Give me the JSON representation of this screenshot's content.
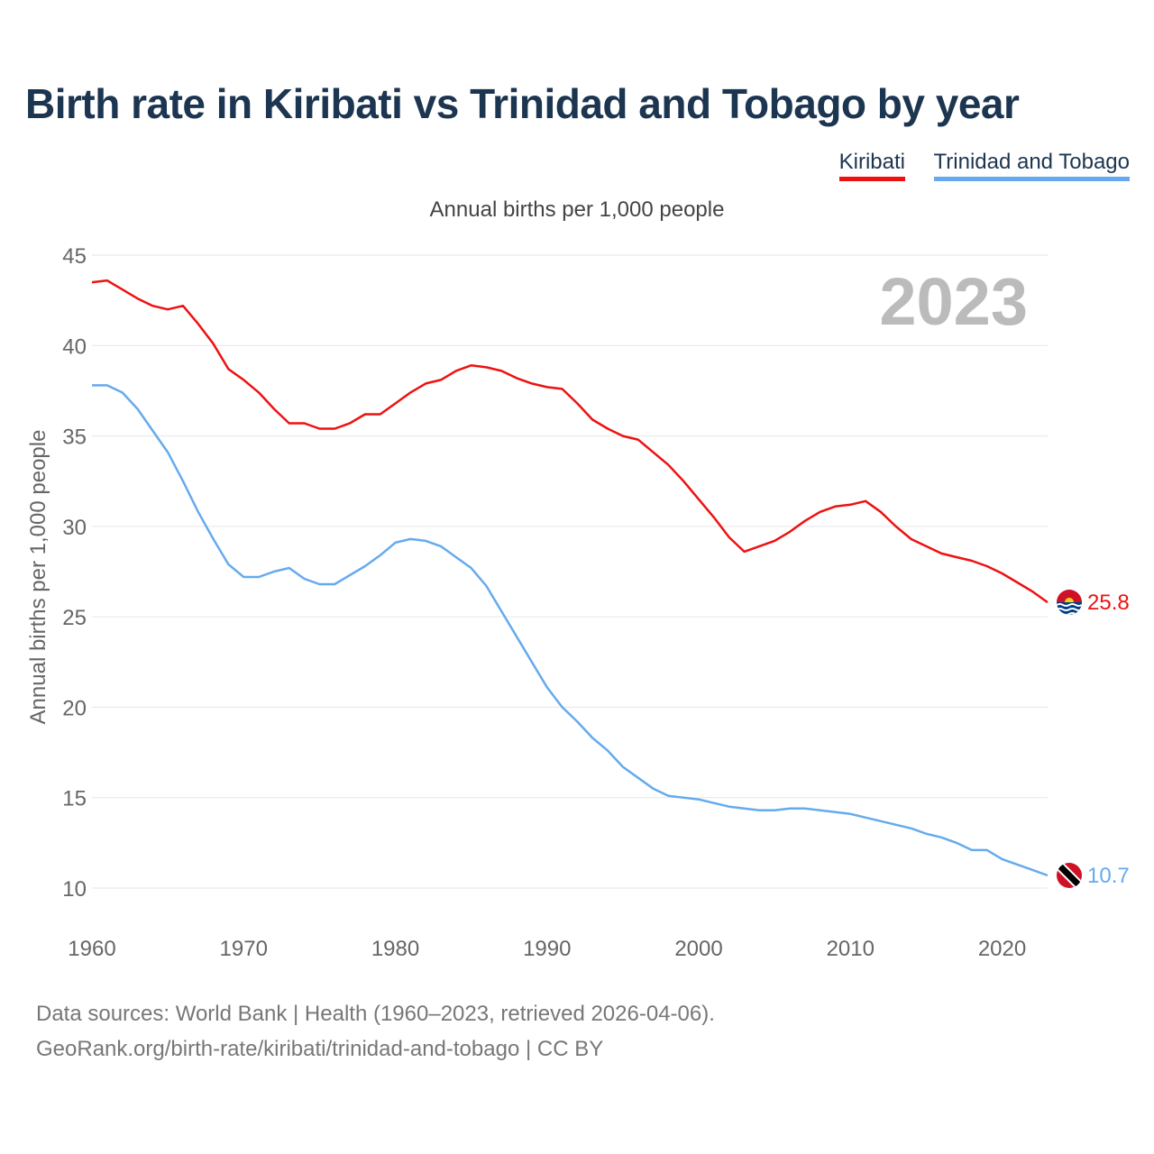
{
  "title": "Birth rate in Kiribati vs Trinidad and Tobago by year",
  "legend": [
    {
      "label": "Kiribati",
      "color": "#ee1111"
    },
    {
      "label": "Trinidad and Tobago",
      "color": "#66aaee"
    }
  ],
  "chart_data": {
    "type": "line",
    "title": "Birth rate in Kiribati vs Trinidad and Tobago by year",
    "subtitle": "Annual births per 1,000 people",
    "ylabel": "Annual births per 1,000 people",
    "xlabel": "",
    "ylim": [
      10,
      45
    ],
    "xlim": [
      1960,
      2023
    ],
    "yticks": [
      "10",
      "15",
      "20",
      "25",
      "30",
      "35",
      "40",
      "45"
    ],
    "xticks": [
      "1960",
      "1970",
      "1980",
      "1990",
      "2000",
      "2010",
      "2020"
    ],
    "grid": true,
    "year_label": "2023",
    "x": [
      1960,
      1961,
      1962,
      1963,
      1964,
      1965,
      1966,
      1967,
      1968,
      1969,
      1970,
      1971,
      1972,
      1973,
      1974,
      1975,
      1976,
      1977,
      1978,
      1979,
      1980,
      1981,
      1982,
      1983,
      1984,
      1985,
      1986,
      1987,
      1988,
      1989,
      1990,
      1991,
      1992,
      1993,
      1994,
      1995,
      1996,
      1997,
      1998,
      1999,
      2000,
      2001,
      2002,
      2003,
      2004,
      2005,
      2006,
      2007,
      2008,
      2009,
      2010,
      2011,
      2012,
      2013,
      2014,
      2015,
      2016,
      2017,
      2018,
      2019,
      2020,
      2021,
      2022,
      2023
    ],
    "series": [
      {
        "name": "Kiribati",
        "color": "#ee1111",
        "end_label": "25.8",
        "values": [
          43.5,
          43.6,
          43.1,
          42.6,
          42.2,
          42.0,
          42.2,
          41.2,
          40.1,
          38.7,
          38.1,
          37.4,
          36.5,
          35.7,
          35.7,
          35.4,
          35.4,
          35.7,
          36.2,
          36.2,
          36.8,
          37.4,
          37.9,
          38.1,
          38.6,
          38.9,
          38.8,
          38.6,
          38.2,
          37.9,
          37.7,
          37.6,
          36.8,
          35.9,
          35.4,
          35.0,
          34.8,
          34.1,
          33.4,
          32.5,
          31.5,
          30.5,
          29.4,
          28.6,
          28.9,
          29.2,
          29.7,
          30.3,
          30.8,
          31.1,
          31.2,
          31.4,
          30.8,
          30.0,
          29.3,
          28.9,
          28.5,
          28.3,
          28.1,
          27.8,
          27.4,
          26.9,
          26.4,
          25.8
        ]
      },
      {
        "name": "Trinidad and Tobago",
        "color": "#66aaee",
        "end_label": "10.7",
        "values": [
          37.8,
          37.8,
          37.4,
          36.5,
          35.3,
          34.1,
          32.5,
          30.8,
          29.3,
          27.9,
          27.2,
          27.2,
          27.5,
          27.7,
          27.1,
          26.8,
          26.8,
          27.3,
          27.8,
          28.4,
          29.1,
          29.3,
          29.2,
          28.9,
          28.3,
          27.7,
          26.7,
          25.3,
          23.9,
          22.5,
          21.1,
          20.0,
          19.2,
          18.3,
          17.6,
          16.7,
          16.1,
          15.5,
          15.1,
          15.0,
          14.9,
          14.7,
          14.5,
          14.4,
          14.3,
          14.3,
          14.4,
          14.4,
          14.3,
          14.2,
          14.1,
          13.9,
          13.7,
          13.5,
          13.3,
          13.0,
          12.8,
          12.5,
          12.1,
          12.1,
          11.6,
          11.3,
          11.0,
          10.7
        ]
      }
    ]
  },
  "footer": {
    "line1": "Data sources: World Bank | Health (1960–2023, retrieved 2026-04-06).",
    "line2": "GeoRank.org/birth-rate/kiribati/trinidad-and-tobago | CC BY"
  }
}
